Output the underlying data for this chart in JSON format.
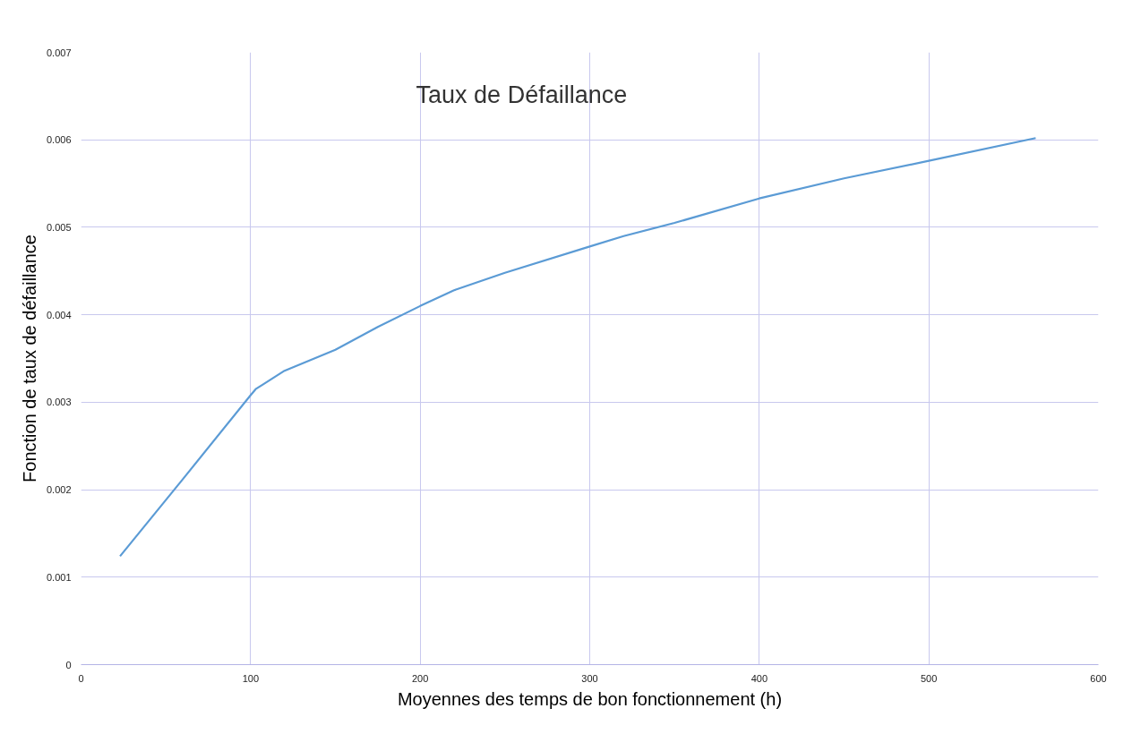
{
  "chart_data": {
    "type": "line",
    "title": "Taux de Défaillance",
    "xlabel": "Moyennes des temps de bon fonctionnement (h)",
    "ylabel": "Fonction de taux de défaillance",
    "x": [
      23,
      60,
      100,
      103,
      107,
      120,
      150,
      175,
      200,
      220,
      250,
      300,
      320,
      350,
      400,
      450,
      500,
      563
    ],
    "series": [
      {
        "color": "#5b9bd5",
        "values": [
          0.00124,
          0.00212,
          0.00308,
          0.00315,
          0.0032,
          0.00336,
          0.0036,
          0.00386,
          0.0041,
          0.00428,
          0.00448,
          0.00478,
          0.0049,
          0.00505,
          0.00533,
          0.00556,
          0.00576,
          0.00602
        ]
      }
    ],
    "xlim": [
      0,
      600
    ],
    "xticks": [
      0,
      100,
      200,
      300,
      400,
      500,
      600
    ],
    "ylim": [
      0,
      0.007
    ],
    "yticks": [
      0,
      0.001,
      0.002,
      0.003,
      0.004,
      0.005,
      0.006,
      0.007
    ],
    "grid": true,
    "marker": "none",
    "line_style": "solid"
  }
}
